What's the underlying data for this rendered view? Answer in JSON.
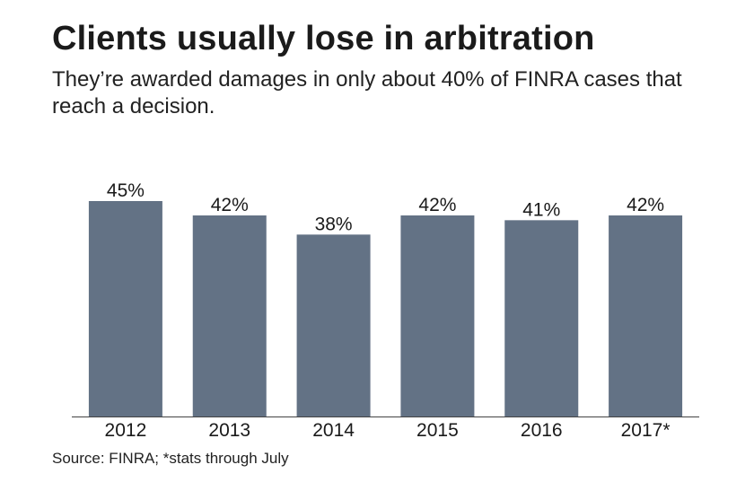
{
  "chart_data": {
    "type": "bar",
    "title": "Clients usually lose in arbitration",
    "subtitle": "They’re awarded damages in only about 40% of FINRA cases that reach a decision.",
    "categories": [
      "2012",
      "2013",
      "2014",
      "2015",
      "2016",
      "2017*"
    ],
    "values": [
      45,
      42,
      38,
      42,
      41,
      42
    ],
    "value_labels": [
      "45%",
      "42%",
      "38%",
      "42%",
      "41%",
      "42%"
    ],
    "xlabel": "",
    "ylabel": "",
    "ylim": [
      0,
      45
    ],
    "grid": false,
    "legend": "none",
    "bar_color": "#637285",
    "axis_color": "#444444",
    "source": "Source: FINRA; *stats through July"
  }
}
